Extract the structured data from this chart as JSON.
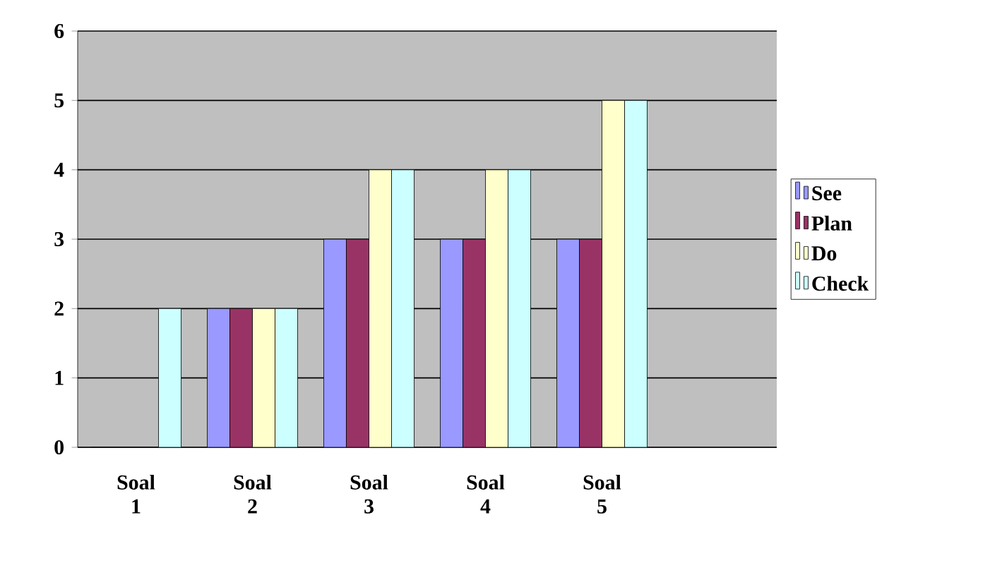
{
  "chart_data": {
    "type": "bar",
    "categories": [
      "Soal 1",
      "Soal 2",
      "Soal 3",
      "Soal 4",
      "Soal 5",
      null
    ],
    "series": [
      {
        "name": "See",
        "color": "#9999ff",
        "values": [
          0,
          2,
          3,
          3,
          3,
          null
        ]
      },
      {
        "name": "Plan",
        "color": "#993366",
        "values": [
          0,
          2,
          3,
          3,
          3,
          null
        ]
      },
      {
        "name": "Do",
        "color": "#ffffcc",
        "values": [
          0,
          2,
          4,
          4,
          5,
          null
        ]
      },
      {
        "name": "Check",
        "color": "#ccffff",
        "values": [
          2,
          2,
          4,
          4,
          5,
          null
        ]
      }
    ],
    "ylim": [
      0,
      6
    ],
    "yticks": [
      0,
      1,
      2,
      3,
      4,
      5,
      6
    ],
    "grid": "y",
    "legend": "right"
  }
}
